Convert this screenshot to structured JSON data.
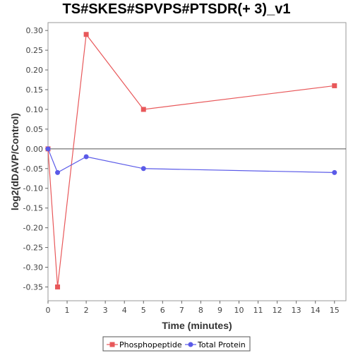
{
  "chart_data": {
    "type": "line",
    "title": "TS#SKES#SPVPS#PTSDR(+ 3)_v1",
    "xlabel": "Time (minutes)",
    "ylabel": "log2(dDAVP/Control)",
    "xlim": [
      0,
      15.6
    ],
    "ylim": [
      -0.385,
      0.32
    ],
    "xticks": [
      "0",
      "1",
      "2",
      "3",
      "4",
      "5",
      "6",
      "7",
      "8",
      "9",
      "10",
      "11",
      "12",
      "13",
      "14",
      "15"
    ],
    "yticks": [
      "0.30",
      "0.25",
      "0.20",
      "0.15",
      "0.10",
      "0.05",
      "0.00",
      "-0.05",
      "-0.10",
      "-0.15",
      "-0.20",
      "-0.25",
      "-0.30",
      "-0.35"
    ],
    "grid": false,
    "legend_position": "bottom",
    "series": [
      {
        "name": "Phosphopeptide",
        "color": "#e8585a",
        "marker": "square",
        "points": [
          {
            "x": 0,
            "y": 0.0
          },
          {
            "x": 0.5,
            "y": -0.35
          },
          {
            "x": 2,
            "y": 0.29
          },
          {
            "x": 5,
            "y": 0.1
          },
          {
            "x": 15,
            "y": 0.16
          }
        ]
      },
      {
        "name": "Total Protein",
        "color": "#5a5ae8",
        "marker": "circle",
        "points": [
          {
            "x": 0,
            "y": 0.0
          },
          {
            "x": 0.5,
            "y": -0.06
          },
          {
            "x": 2,
            "y": -0.02
          },
          {
            "x": 5,
            "y": -0.05
          },
          {
            "x": 15,
            "y": -0.06
          }
        ]
      }
    ]
  }
}
